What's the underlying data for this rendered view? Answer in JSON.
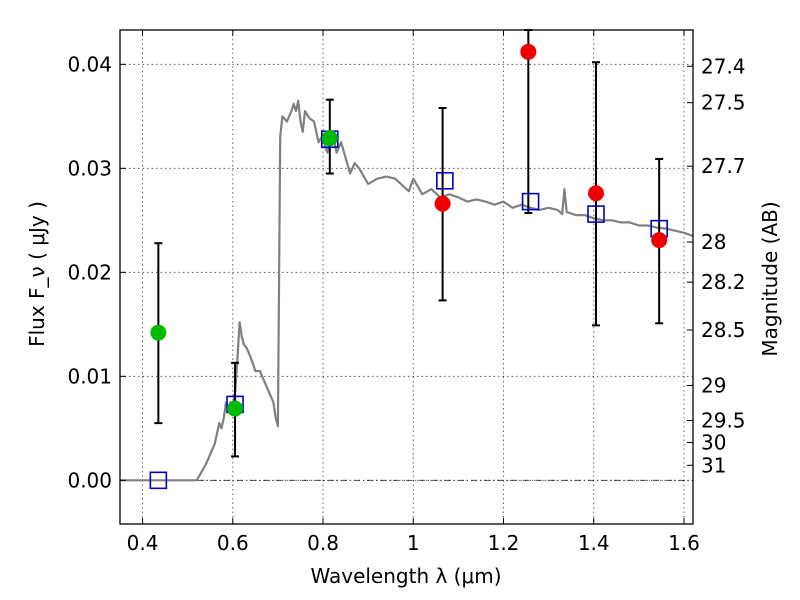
{
  "chart_data": {
    "type": "scatter",
    "xlabel": "Wavelength  λ (μm)",
    "ylabel": "Flux  F_ν  ( μJy )",
    "ylabel_right": "Magnitude (AB)",
    "xlim": [
      0.35,
      1.62
    ],
    "ylim": [
      -0.0042,
      0.0433
    ],
    "grid": true,
    "x_ticks": [
      {
        "value": 0.4,
        "label": "0.4"
      },
      {
        "value": 0.6,
        "label": "0.6"
      },
      {
        "value": 0.8,
        "label": "0.8"
      },
      {
        "value": 1.0,
        "label": "1"
      },
      {
        "value": 1.2,
        "label": "1.2"
      },
      {
        "value": 1.4,
        "label": "1.4"
      },
      {
        "value": 1.6,
        "label": "1.6"
      }
    ],
    "y_ticks": [
      {
        "value": 0.0,
        "label": "0.00"
      },
      {
        "value": 0.01,
        "label": "0.01"
      },
      {
        "value": 0.02,
        "label": "0.02"
      },
      {
        "value": 0.03,
        "label": "0.03"
      },
      {
        "value": 0.04,
        "label": "0.04"
      }
    ],
    "mag_ticks": [
      {
        "value": 27.4,
        "label": "27.4"
      },
      {
        "value": 27.5,
        "label": "27.5"
      },
      {
        "value": 27.7,
        "label": "27.7"
      },
      {
        "value": 28.0,
        "label": "28"
      },
      {
        "value": 28.2,
        "label": "28.2"
      },
      {
        "value": 28.5,
        "label": "28.5"
      },
      {
        "value": 29.0,
        "label": "29"
      },
      {
        "value": 29.5,
        "label": "29.5"
      },
      {
        "value": 30.0,
        "label": "30"
      },
      {
        "value": 31.0,
        "label": "31"
      }
    ],
    "series": [
      {
        "kind": "line",
        "color": "#808080",
        "x": [
          0.35,
          0.43,
          0.5,
          0.52,
          0.54,
          0.56,
          0.57,
          0.575,
          0.58,
          0.585,
          0.59,
          0.595,
          0.6,
          0.605,
          0.61,
          0.615,
          0.62,
          0.625,
          0.63,
          0.64,
          0.65,
          0.66,
          0.67,
          0.68,
          0.69,
          0.695,
          0.7,
          0.705,
          0.71,
          0.72,
          0.73,
          0.735,
          0.74,
          0.745,
          0.75,
          0.755,
          0.76,
          0.77,
          0.78,
          0.79,
          0.8,
          0.805,
          0.81,
          0.815,
          0.82,
          0.83,
          0.84,
          0.85,
          0.86,
          0.87,
          0.88,
          0.9,
          0.92,
          0.94,
          0.96,
          0.98,
          0.99,
          1.0,
          1.02,
          1.04,
          1.06,
          1.08,
          1.1,
          1.12,
          1.14,
          1.16,
          1.18,
          1.2,
          1.22,
          1.24,
          1.26,
          1.28,
          1.3,
          1.32,
          1.33,
          1.335,
          1.34,
          1.36,
          1.38,
          1.4,
          1.42,
          1.44,
          1.46,
          1.48,
          1.5,
          1.52,
          1.54,
          1.56,
          1.58,
          1.6,
          1.62
        ],
        "values": [
          0.0,
          0.0,
          0.0,
          0.0,
          0.0015,
          0.0035,
          0.0055,
          0.005,
          0.006,
          0.0075,
          0.0068,
          0.0075,
          0.0072,
          0.0085,
          0.0115,
          0.0152,
          0.0138,
          0.013,
          0.0128,
          0.0118,
          0.0105,
          0.0105,
          0.0095,
          0.0085,
          0.0075,
          0.006,
          0.0052,
          0.033,
          0.035,
          0.0345,
          0.0355,
          0.0362,
          0.0355,
          0.0365,
          0.0345,
          0.0335,
          0.0355,
          0.0348,
          0.0345,
          0.0325,
          0.0332,
          0.032,
          0.0315,
          0.0328,
          0.0335,
          0.0315,
          0.0325,
          0.031,
          0.0295,
          0.0305,
          0.03,
          0.0285,
          0.029,
          0.0292,
          0.029,
          0.0282,
          0.0278,
          0.029,
          0.0275,
          0.028,
          0.0272,
          0.0275,
          0.0272,
          0.0268,
          0.027,
          0.0268,
          0.0265,
          0.0268,
          0.0262,
          0.0265,
          0.0262,
          0.026,
          0.0262,
          0.026,
          0.0256,
          0.028,
          0.0258,
          0.0255,
          0.0255,
          0.0252,
          0.025,
          0.025,
          0.0248,
          0.0248,
          0.0245,
          0.0245,
          0.0243,
          0.0242,
          0.024,
          0.0238,
          0.0235
        ]
      },
      {
        "kind": "open-square",
        "color": "#0000cc",
        "x": [
          0.435,
          0.605,
          0.815,
          1.07,
          1.26,
          1.405,
          1.545
        ],
        "values": [
          0.0,
          0.0073,
          0.0328,
          0.0288,
          0.0268,
          0.0256,
          0.0242
        ]
      },
      {
        "kind": "circle",
        "color": "#00bb00",
        "x": [
          0.435,
          0.605,
          0.815
        ],
        "values": [
          0.0142,
          0.0069,
          0.0329
        ]
      },
      {
        "kind": "circle",
        "color": "#ee0000",
        "x": [
          1.065,
          1.255,
          1.405,
          1.545
        ],
        "values": [
          0.0266,
          0.0412,
          0.0276,
          0.0231
        ]
      },
      {
        "kind": "errorbar",
        "color": "#000000",
        "x": [
          0.435,
          0.605,
          0.815,
          1.065,
          1.255,
          1.405,
          1.545
        ],
        "low": [
          0.0055,
          0.0023,
          0.0295,
          0.0173,
          0.0257,
          0.0149,
          0.0151
        ],
        "high": [
          0.0228,
          0.0113,
          0.0366,
          0.0358,
          0.0433,
          0.0402,
          0.0309
        ]
      }
    ]
  }
}
